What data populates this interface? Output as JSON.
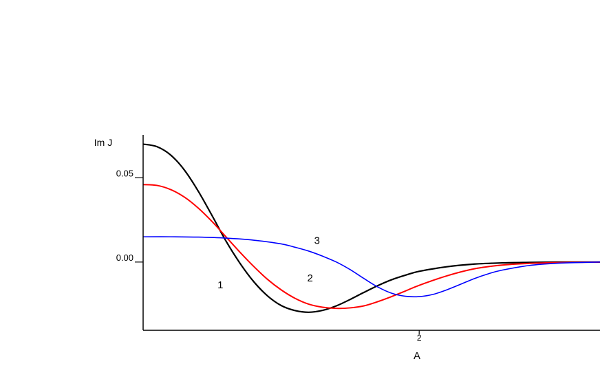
{
  "chart_data": {
    "type": "line",
    "title": "",
    "ylabel": "Im J",
    "xlabel": "A",
    "xlim": [
      0,
      3.31
    ],
    "ylim": [
      -0.0405,
      0.0755
    ],
    "yticks": [
      {
        "value": 0.05,
        "label": "0.05"
      },
      {
        "value": 0.0,
        "label": "0.00"
      }
    ],
    "xticks": [
      {
        "value": 2,
        "label": "2"
      }
    ],
    "grid": false,
    "legend": "none",
    "series": [
      {
        "name": "1",
        "color": "#000000",
        "label_at": [
          0.56,
          -0.0155
        ],
        "x": [
          0,
          0.1,
          0.2,
          0.3,
          0.4,
          0.5,
          0.6,
          0.7,
          0.8,
          0.9,
          1.0,
          1.1,
          1.2,
          1.3,
          1.4,
          1.5,
          1.6,
          1.7,
          1.8,
          1.9,
          2.0,
          2.2,
          2.4,
          2.6,
          2.8,
          3.0,
          3.2,
          3.31
        ],
        "y": [
          0.07,
          0.0685,
          0.0635,
          0.0545,
          0.042,
          0.0275,
          0.0125,
          -0.0005,
          -0.0115,
          -0.02,
          -0.0258,
          -0.0288,
          -0.0298,
          -0.0287,
          -0.026,
          -0.0222,
          -0.018,
          -0.014,
          -0.0105,
          -0.0078,
          -0.0055,
          -0.0028,
          -0.0012,
          -0.0005,
          -0.0002,
          0.0,
          0.0,
          0.0
        ]
      },
      {
        "name": "2",
        "color": "#ff0000",
        "label_at": [
          1.21,
          -0.0115
        ],
        "x": [
          0,
          0.1,
          0.2,
          0.3,
          0.4,
          0.5,
          0.6,
          0.7,
          0.8,
          0.9,
          1.0,
          1.1,
          1.2,
          1.3,
          1.4,
          1.5,
          1.6,
          1.7,
          1.8,
          1.9,
          2.0,
          2.2,
          2.4,
          2.6,
          2.8,
          3.0,
          3.2,
          3.31
        ],
        "y": [
          0.046,
          0.0455,
          0.043,
          0.0385,
          0.032,
          0.024,
          0.015,
          0.006,
          -0.0025,
          -0.0102,
          -0.0165,
          -0.0215,
          -0.025,
          -0.0268,
          -0.0275,
          -0.0272,
          -0.026,
          -0.0235,
          -0.0205,
          -0.0172,
          -0.0138,
          -0.0082,
          -0.004,
          -0.0018,
          -0.0008,
          -0.0003,
          -0.0001,
          0.0
        ]
      },
      {
        "name": "3",
        "color": "#0000ff",
        "label_at": [
          1.26,
          0.0108
        ],
        "x": [
          0,
          0.2,
          0.4,
          0.6,
          0.8,
          1.0,
          1.1,
          1.2,
          1.3,
          1.4,
          1.5,
          1.6,
          1.7,
          1.8,
          1.9,
          2.0,
          2.1,
          2.2,
          2.3,
          2.4,
          2.5,
          2.6,
          2.8,
          3.0,
          3.2,
          3.31
        ],
        "y": [
          0.015,
          0.015,
          0.0148,
          0.0142,
          0.013,
          0.0108,
          0.0088,
          0.0065,
          0.0035,
          0.0,
          -0.0045,
          -0.0098,
          -0.0148,
          -0.0185,
          -0.0203,
          -0.0205,
          -0.0192,
          -0.0165,
          -0.0132,
          -0.0098,
          -0.007,
          -0.0048,
          -0.002,
          -0.0007,
          -0.0002,
          0.0
        ]
      }
    ]
  }
}
